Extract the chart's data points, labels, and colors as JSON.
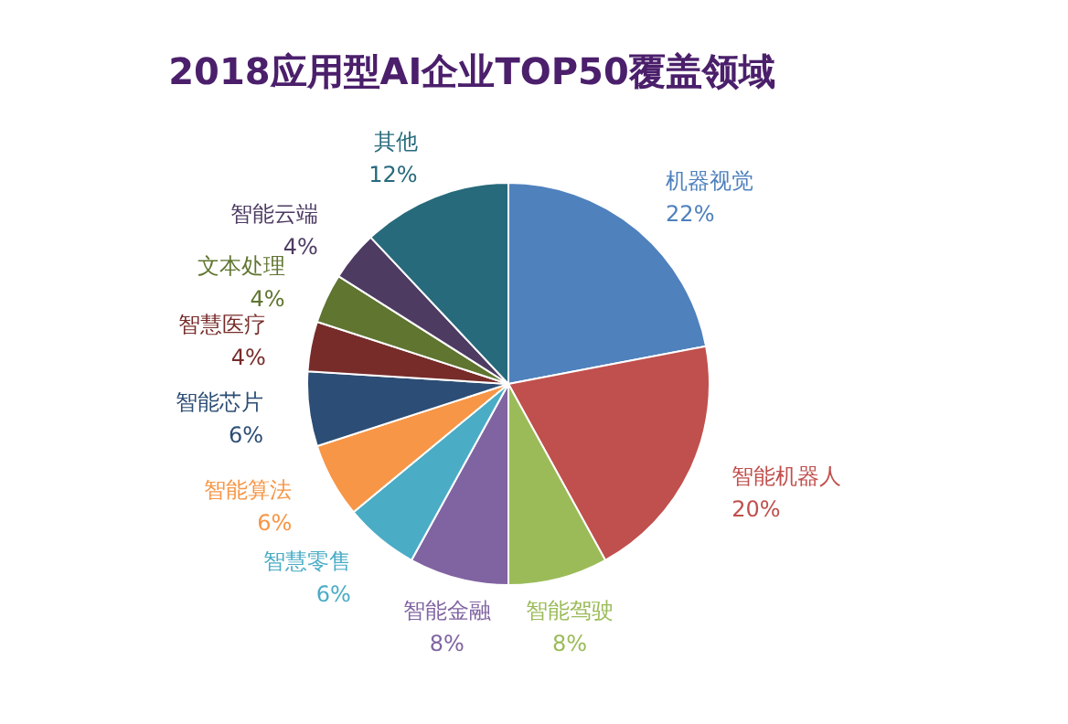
{
  "chart_data": {
    "type": "pie",
    "title": "2018应用型AI企业TOP50覆盖领域",
    "categories": [
      "机器视觉",
      "智能机器人",
      "智能驾驶",
      "智能金融",
      "智慧零售",
      "智能算法",
      "智能芯片",
      "智慧医疗",
      "文本处理",
      "智能云端",
      "其他"
    ],
    "values": [
      22,
      20,
      8,
      8,
      6,
      6,
      6,
      4,
      4,
      4,
      12
    ],
    "colors": [
      "#4f81bd",
      "#c0504d",
      "#9bbb59",
      "#8064a2",
      "#4bacc6",
      "#f79646",
      "#2c4d75",
      "#772c2a",
      "#5f7530",
      "#4d3b62",
      "#276a7c"
    ],
    "value_labels": [
      "22%",
      "20%",
      "8%",
      "8%",
      "6%",
      "6%",
      "6%",
      "4%",
      "4%",
      "4%",
      "12%"
    ],
    "legend": false
  }
}
